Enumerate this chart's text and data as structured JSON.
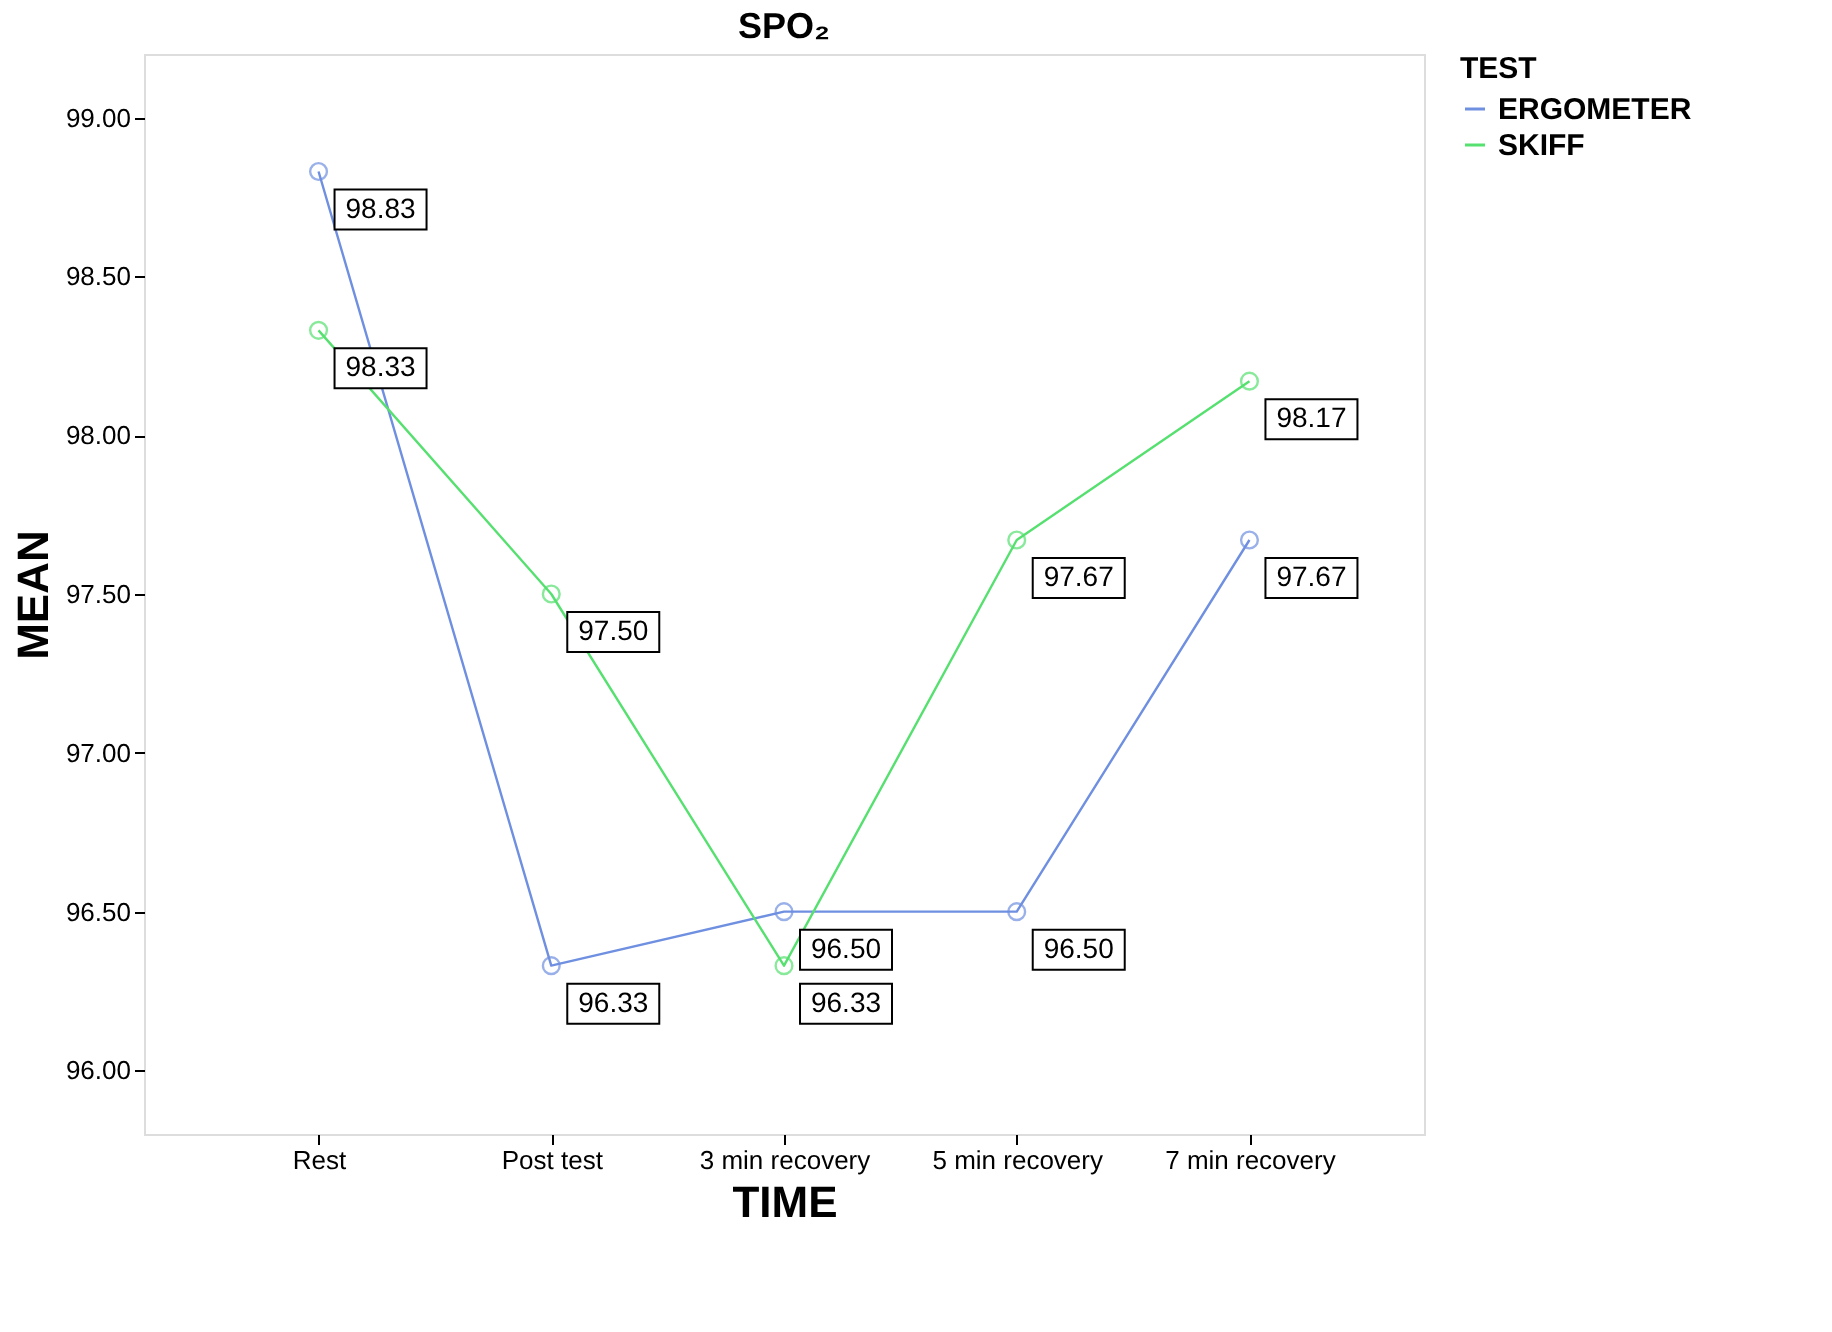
{
  "chart_data": {
    "type": "line",
    "title": "SPO₂",
    "xlabel": "TIME",
    "ylabel": "MEAN",
    "legend_title": "TEST",
    "categories": [
      "Rest",
      "Post test",
      "3 min recovery",
      "5 min recovery",
      "7 min recovery"
    ],
    "series": [
      {
        "name": "ERGOMETER",
        "color": "#6f8fe0",
        "values": [
          98.83,
          96.33,
          96.5,
          96.5,
          97.67
        ],
        "value_labels": [
          "98.83",
          "96.33",
          "96.50",
          "96.50",
          "97.67"
        ]
      },
      {
        "name": "SKIFF",
        "color": "#55e06f",
        "values": [
          98.33,
          97.5,
          96.33,
          97.67,
          98.17
        ],
        "value_labels": [
          "98.33",
          "97.50",
          "96.33",
          "97.67",
          "98.17"
        ]
      }
    ],
    "ylim": [
      95.8,
      99.2
    ],
    "yticks": [
      {
        "value": 96,
        "label": "96.00"
      },
      {
        "value": 96.5,
        "label": "96.50"
      },
      {
        "value": 97,
        "label": "97.00"
      },
      {
        "value": 97.5,
        "label": "97.50"
      },
      {
        "value": 98,
        "label": "98.00"
      },
      {
        "value": 98.5,
        "label": "98.50"
      },
      {
        "value": 99,
        "label": "99.00"
      }
    ],
    "grid": false,
    "legend": "top right",
    "marker": "circle",
    "line_style": "solid"
  }
}
